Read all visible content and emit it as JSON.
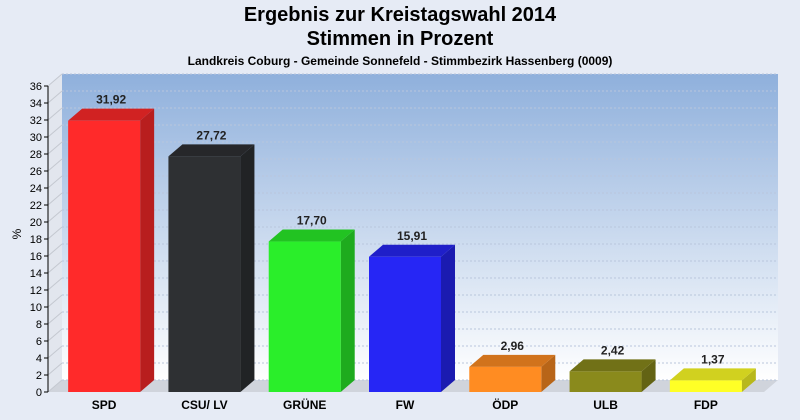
{
  "chart_data": {
    "type": "bar",
    "title": "Ergebnis zur Kreistagswahl 2014",
    "title_line2": "Stimmen in Prozent",
    "subtitle": "Landkreis Coburg - Gemeinde Sonnefeld - Stimmbezirk Hassenberg (0009)",
    "xlabel": "",
    "ylabel": "%",
    "ylim": [
      0,
      36
    ],
    "yticks": [
      0,
      2,
      4,
      6,
      8,
      10,
      12,
      14,
      16,
      18,
      20,
      22,
      24,
      26,
      28,
      30,
      32,
      34,
      36
    ],
    "grid": true,
    "categories": [
      "SPD",
      "CSU/ LV",
      "GRÜNE",
      "FW",
      "ÖDP",
      "ULB",
      "FDP"
    ],
    "values": [
      31.92,
      27.72,
      17.7,
      15.91,
      2.96,
      2.42,
      1.37
    ],
    "value_labels": [
      "31,92",
      "27,72",
      "17,70",
      "15,91",
      "2,96",
      "2,42",
      "1,37"
    ],
    "colors": [
      "#ff2a2a",
      "#2e3033",
      "#2aee2a",
      "#2626f5",
      "#ff8c22",
      "#8a8a1c",
      "#ffff26"
    ]
  }
}
